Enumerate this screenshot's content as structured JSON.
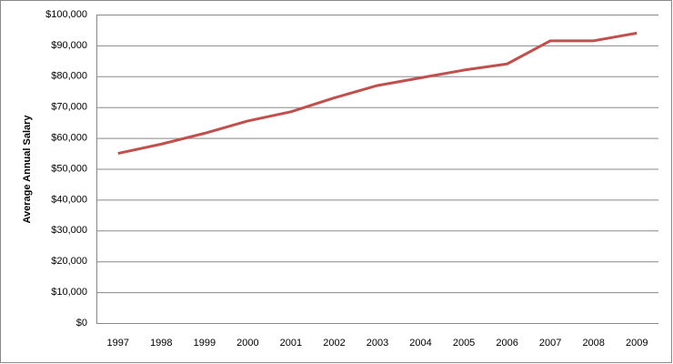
{
  "chart_data": {
    "type": "line",
    "y_label": "Average Annual Salary",
    "categories": [
      "1997",
      "1998",
      "1999",
      "2000",
      "2001",
      "2002",
      "2003",
      "2004",
      "2005",
      "2006",
      "2007",
      "2008",
      "2009"
    ],
    "series": [
      {
        "name": "Average Annual Salary",
        "color": "#c0504d",
        "values": [
          55000,
          58000,
          61500,
          65500,
          68500,
          73000,
          77000,
          79500,
          82000,
          84000,
          91500,
          91500,
          94000
        ]
      }
    ],
    "ylim": [
      0,
      100000
    ],
    "yticks": [
      {
        "value": 0,
        "label": "$0"
      },
      {
        "value": 10000,
        "label": "$10,000"
      },
      {
        "value": 20000,
        "label": "$20,000"
      },
      {
        "value": 30000,
        "label": "$30,000"
      },
      {
        "value": 40000,
        "label": "$40,000"
      },
      {
        "value": 50000,
        "label": "$50,000"
      },
      {
        "value": 60000,
        "label": "$60,000"
      },
      {
        "value": 70000,
        "label": "$70,000"
      },
      {
        "value": 80000,
        "label": "$80,000"
      },
      {
        "value": 90000,
        "label": "$90,000"
      },
      {
        "value": 100000,
        "label": "$100,000"
      }
    ],
    "grid": true
  }
}
